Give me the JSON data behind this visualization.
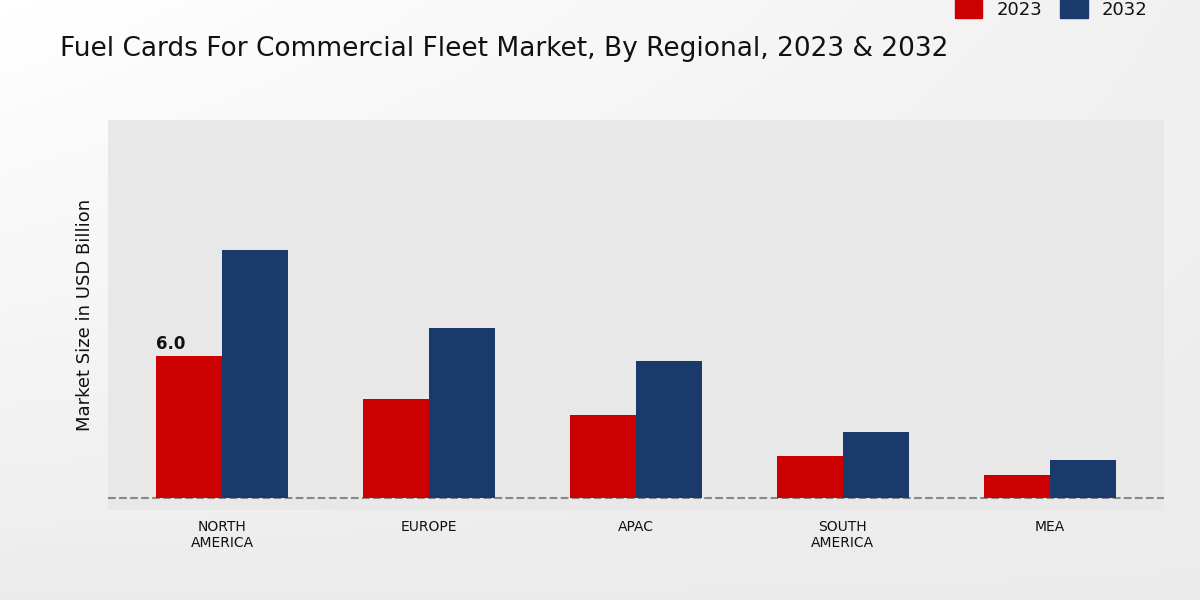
{
  "title": "Fuel Cards For Commercial Fleet Market, By Regional, 2023 & 2032",
  "ylabel": "Market Size in USD Billion",
  "categories": [
    "NORTH\nAMERICA",
    "EUROPE",
    "APAC",
    "SOUTH\nAMERICA",
    "MEA"
  ],
  "values_2023": [
    6.0,
    4.2,
    3.5,
    1.8,
    1.0
  ],
  "values_2032": [
    10.5,
    7.2,
    5.8,
    2.8,
    1.6
  ],
  "color_2023": "#cc0000",
  "color_2032": "#1a3a6b",
  "annotation_text": "6.0",
  "background_color_top": "#f0f0f0",
  "background_color_bottom": "#d0d0d0",
  "bar_width": 0.32,
  "legend_labels": [
    "2023",
    "2032"
  ],
  "title_fontsize": 19,
  "axis_label_fontsize": 13,
  "tick_fontsize": 10,
  "legend_fontsize": 13,
  "ylim_max": 16.0,
  "red_stripe_color": "#cc0000"
}
